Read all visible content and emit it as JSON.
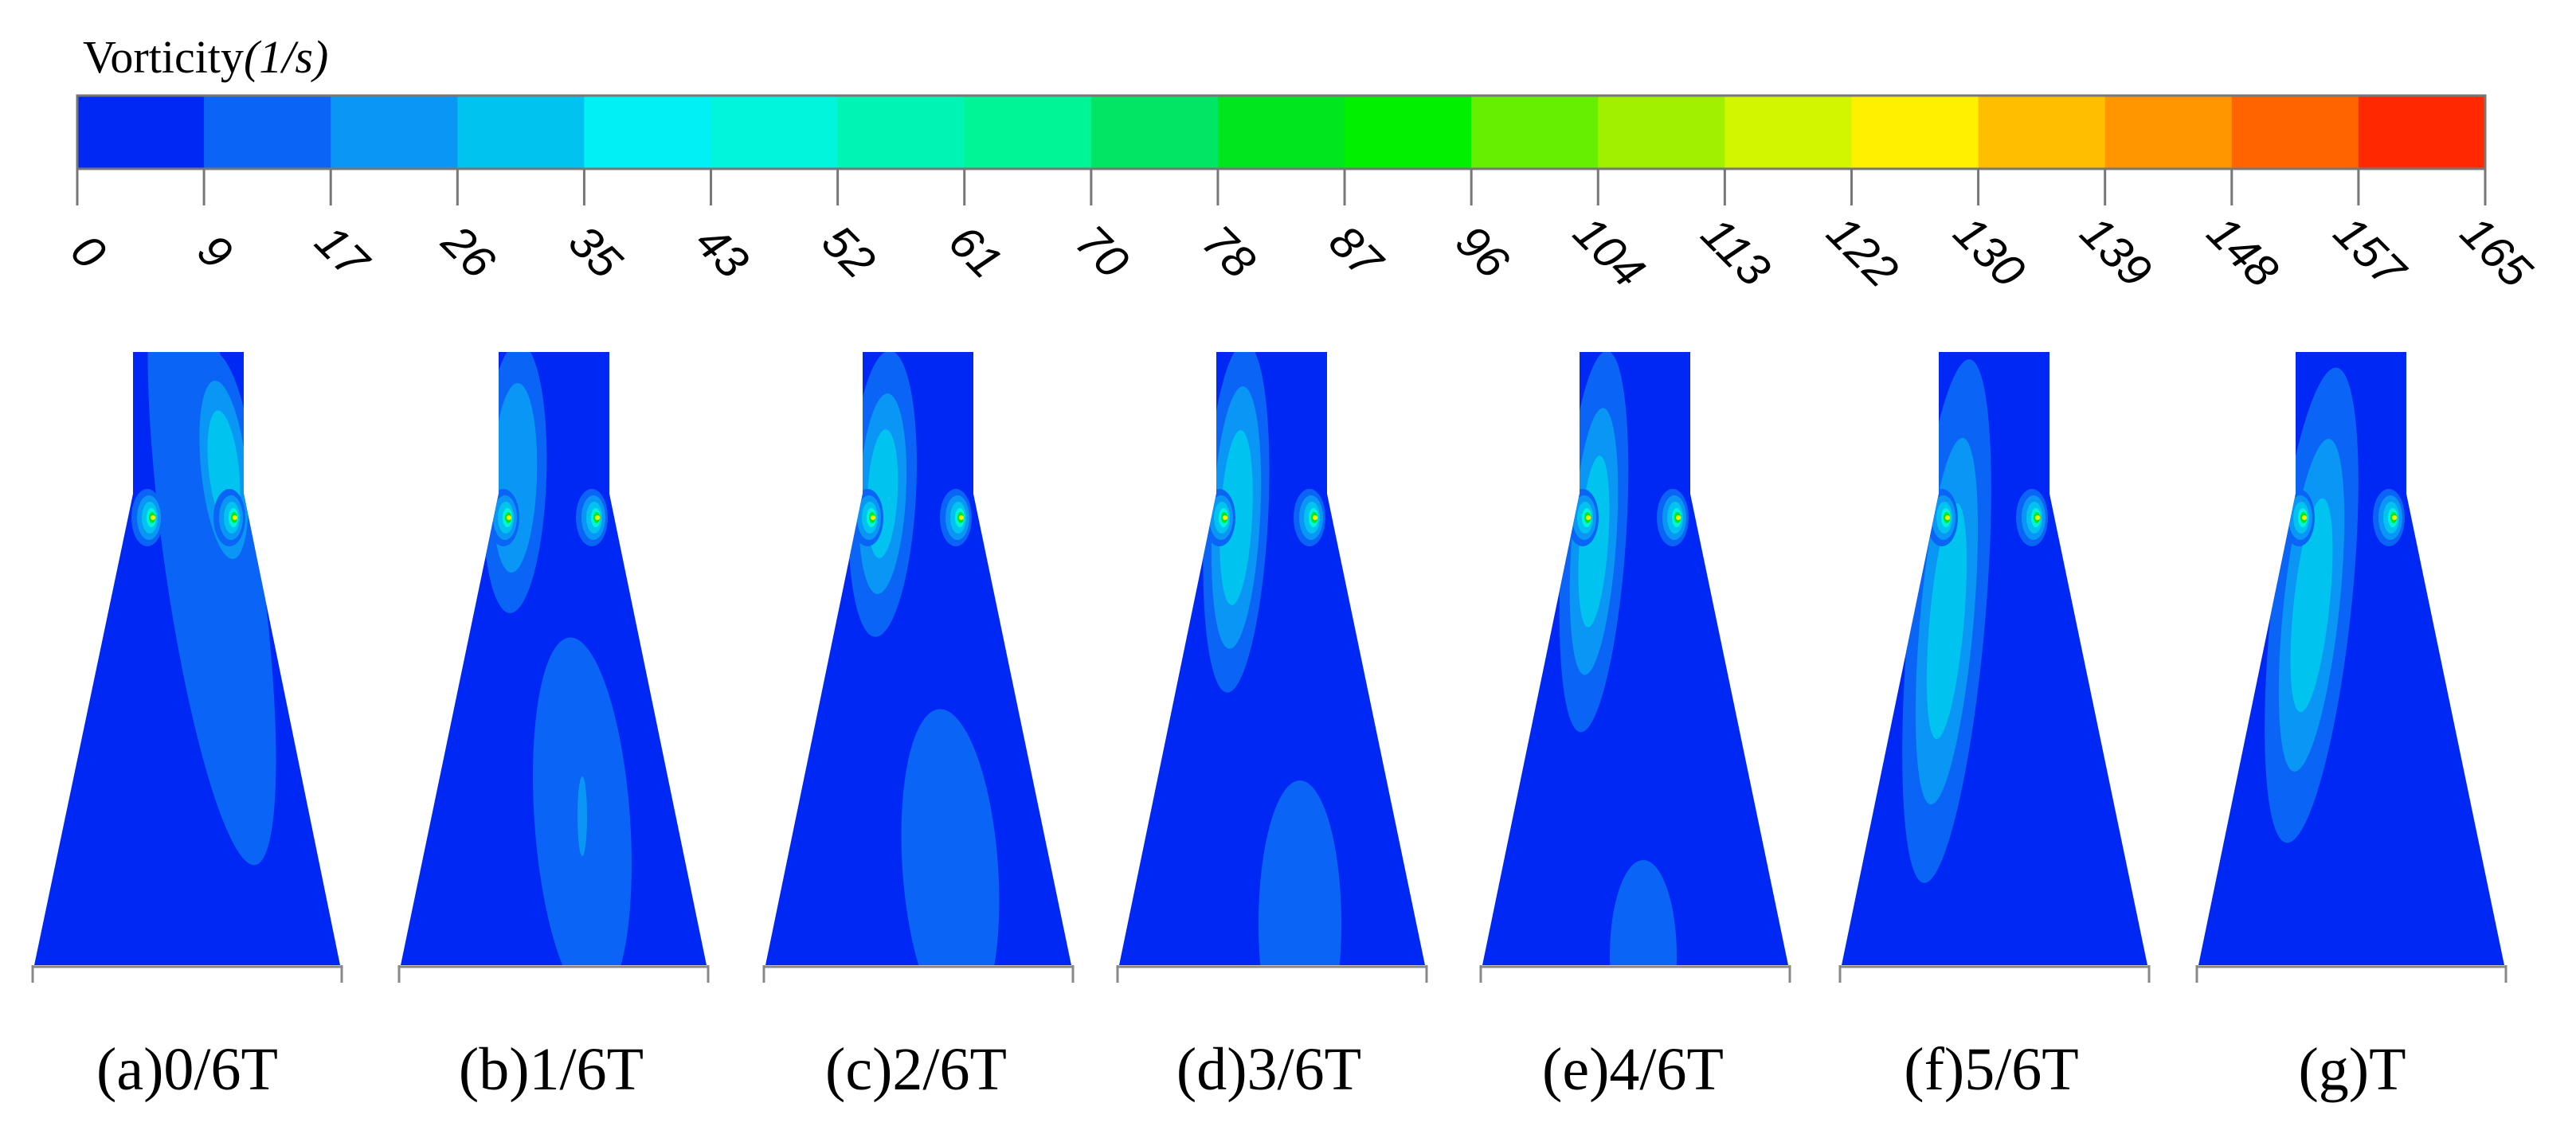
{
  "colorbar": {
    "title": "Vorticity",
    "unit": "(1/s)",
    "min": 0,
    "max": 165,
    "tick_labels": [
      "0",
      "9",
      "17",
      "26",
      "35",
      "43",
      "52",
      "61",
      "70",
      "78",
      "87",
      "96",
      "104",
      "113",
      "122",
      "130",
      "139",
      "148",
      "157",
      "165"
    ],
    "colors": [
      "#0028f5",
      "#0a64f5",
      "#0a96f5",
      "#00c3f0",
      "#00f0f5",
      "#00f5dc",
      "#00f5b4",
      "#00f596",
      "#00e664",
      "#00e61e",
      "#00f000",
      "#64f000",
      "#a0f000",
      "#d2f500",
      "#fff000",
      "#ffbe00",
      "#ff9600",
      "#ff6400",
      "#ff2800"
    ]
  },
  "panels": [
    {
      "caption": "(a)0/6T"
    },
    {
      "caption": "(b)1/6T"
    },
    {
      "caption": "(c)2/6T"
    },
    {
      "caption": "(d)3/6T"
    },
    {
      "caption": "(e)4/6T"
    },
    {
      "caption": "(f)5/6T"
    },
    {
      "caption": "(g)T"
    }
  ],
  "palette": {
    "background_flow": "#0028f5",
    "frame_line": "#888888"
  }
}
